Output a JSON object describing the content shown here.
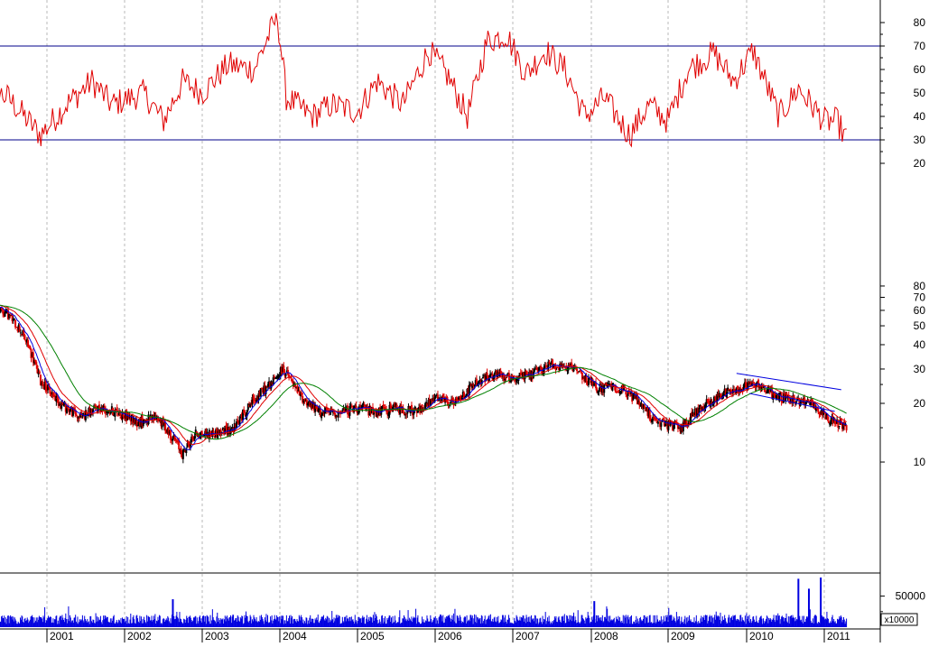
{
  "chart_data": [
    {
      "panel": "oscillator",
      "type": "line",
      "y_ticks": [
        "20",
        "30",
        "40",
        "50",
        "60",
        "70",
        "80"
      ],
      "ylim": [
        20,
        80
      ],
      "reference_lines": [
        30,
        70
      ],
      "series": [
        {
          "color": "#e00000",
          "anchor_x": [
            "2000-01-01",
            "2000-07-01",
            "2000-12-01",
            "2001-04-01",
            "2001-08-01",
            "2001-11-01",
            "2002-04-01",
            "2002-07-01",
            "2002-10-01",
            "2003-01-01",
            "2003-05-01",
            "2003-09-01",
            "2003-12-20",
            "2004-02-01",
            "2004-06-01",
            "2004-09-01",
            "2005-01-01",
            "2005-04-01",
            "2005-08-01",
            "2005-12-01",
            "2006-03-01",
            "2006-06-01",
            "2006-09-01",
            "2006-12-01",
            "2007-03-01",
            "2007-06-01",
            "2007-09-01",
            "2007-12-01",
            "2008-03-01",
            "2008-07-01",
            "2008-10-01",
            "2009-01-01",
            "2009-04-01",
            "2009-08-01",
            "2009-11-01",
            "2010-02-01",
            "2010-06-01",
            "2010-09-01",
            "2011-01-01",
            "2011-03-01",
            "2011-04-15"
          ],
          "anchor_y": [
            55,
            48,
            32,
            45,
            55,
            45,
            50,
            38,
            55,
            50,
            62,
            60,
            83,
            48,
            40,
            45,
            42,
            55,
            45,
            68,
            57,
            40,
            72,
            75,
            58,
            68,
            60,
            40,
            48,
            32,
            45,
            38,
            60,
            67,
            55,
            68,
            40,
            52,
            38,
            38,
            30
          ]
        }
      ]
    },
    {
      "panel": "price",
      "type": "candlestick",
      "scale": "log",
      "y_ticks": [
        "10",
        "20",
        "30",
        "40",
        "50",
        "60",
        "70",
        "80"
      ],
      "ylim": [
        7,
        85
      ],
      "anchor_x": [
        "2000-01-01",
        "2000-04-01",
        "2000-07-01",
        "2000-09-01",
        "2000-12-01",
        "2001-03-01",
        "2001-06-01",
        "2001-09-01",
        "2001-12-01",
        "2002-03-01",
        "2002-06-01",
        "2002-08-01",
        "2002-10-01",
        "2002-12-01",
        "2003-03-01",
        "2003-06-01",
        "2003-09-01",
        "2003-12-01",
        "2004-01-15",
        "2004-04-01",
        "2004-07-01",
        "2004-10-01",
        "2005-01-01",
        "2005-04-01",
        "2005-07-01",
        "2005-10-01",
        "2006-01-01",
        "2006-04-01",
        "2006-07-01",
        "2006-10-01",
        "2007-01-01",
        "2007-04-01",
        "2007-07-01",
        "2007-10-01",
        "2007-12-01",
        "2008-02-01",
        "2008-05-01",
        "2008-08-01",
        "2008-11-01",
        "2009-03-01",
        "2009-06-01",
        "2009-09-01",
        "2009-12-01",
        "2010-02-01",
        "2010-05-01",
        "2010-08-01",
        "2010-11-01",
        "2011-01-15",
        "2011-04-15"
      ],
      "anchor_close": [
        62,
        66,
        57,
        47,
        26,
        20,
        17,
        19,
        18,
        16,
        17,
        14,
        11,
        14,
        14,
        15,
        21,
        26,
        30,
        22,
        18,
        18,
        19,
        18,
        19,
        18,
        21,
        20,
        25,
        28,
        27,
        28,
        32,
        30,
        27,
        24,
        24,
        21,
        16,
        15,
        19,
        22,
        24,
        26,
        22,
        21,
        20,
        17,
        15
      ],
      "overlays": [
        {
          "color": "#0000e0"
        },
        {
          "color": "#e00000"
        },
        {
          "color": "#008000"
        }
      ],
      "trend_channel": {
        "color": "#0000e0",
        "upper": {
          "from": [
            "2009-11-15",
            28.5
          ],
          "to": [
            "2011-03-20",
            23.5
          ]
        },
        "lower": {
          "from": [
            "2010-01-15",
            22.5
          ],
          "to": [
            "2011-02-20",
            18.2
          ]
        }
      },
      "up_color": "#000000",
      "down_color": "#e00000"
    },
    {
      "panel": "volume",
      "type": "bar",
      "color": "#0000e0",
      "y_ticks": [
        "50000"
      ],
      "unit_label": "x10000",
      "ylim": [
        0,
        80000
      ],
      "spikes": [
        {
          "x": "2010-09-01",
          "value": 78000
        },
        {
          "x": "2010-10-20",
          "value": 62000
        },
        {
          "x": "2010-12-15",
          "value": 80000
        },
        {
          "x": "2002-08-15",
          "value": 45000
        },
        {
          "x": "2008-01-15",
          "value": 42000
        }
      ]
    }
  ],
  "x_axis": {
    "labels": [
      "2001",
      "2002",
      "2003",
      "2004",
      "2005",
      "2006",
      "2007",
      "2008",
      "2009",
      "2010",
      "2011"
    ]
  }
}
